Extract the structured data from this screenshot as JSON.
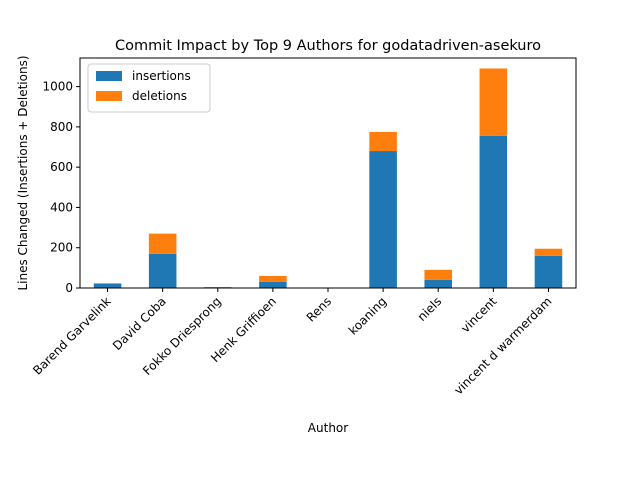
{
  "chart_data": {
    "type": "bar",
    "stacked": true,
    "title": "Commit Impact by Top 9 Authors for godatadriven-asekuro",
    "xlabel": "Author",
    "ylabel": "Lines Changed (Insertions + Deletions)",
    "categories": [
      "Barend Garvelink",
      "David Coba",
      "Fokko Driesprong",
      "Henk Griffioen",
      "Rens",
      "koaning",
      "niels",
      "vincent",
      "vincent d warmerdam"
    ],
    "series": [
      {
        "name": "insertions",
        "color": "#1f77b4",
        "values": [
          20,
          170,
          2,
          30,
          0,
          680,
          40,
          755,
          160
        ]
      },
      {
        "name": "deletions",
        "color": "#ff7f0e",
        "values": [
          4,
          100,
          3,
          30,
          0,
          95,
          50,
          335,
          35
        ]
      }
    ],
    "ylim": [
      0,
      1142
    ],
    "yticks": [
      0,
      200,
      400,
      600,
      800,
      1000
    ],
    "legend": "top-left",
    "grid": false
  }
}
